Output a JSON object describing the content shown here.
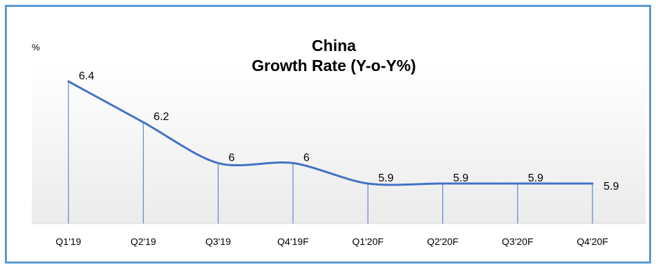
{
  "chart_data": {
    "type": "line",
    "title": "China",
    "subtitle": "Growth Rate (Y-o-Y%)",
    "ylabel": "%",
    "xlabel": "",
    "categories": [
      "Q1'19",
      "Q2'19",
      "Q3'19",
      "Q4'19F",
      "Q1'20F",
      "Q2'20F",
      "Q3'20F",
      "Q4'20F"
    ],
    "values": [
      6.4,
      6.2,
      6,
      6,
      5.9,
      5.9,
      5.9,
      5.9
    ],
    "data_labels": [
      "6.4",
      "6.2",
      "6",
      "6",
      "5.9",
      "5.9",
      "5.9",
      "5.9"
    ],
    "ylim": [
      5.4,
      6.5
    ],
    "smooth": true,
    "drop_lines": true,
    "grid": false,
    "colors": {
      "line": "#4472c4",
      "drop_line": "#4472c4",
      "frame": "#5b9bd5",
      "plot_bg_bottom": "#ebebeb"
    }
  }
}
